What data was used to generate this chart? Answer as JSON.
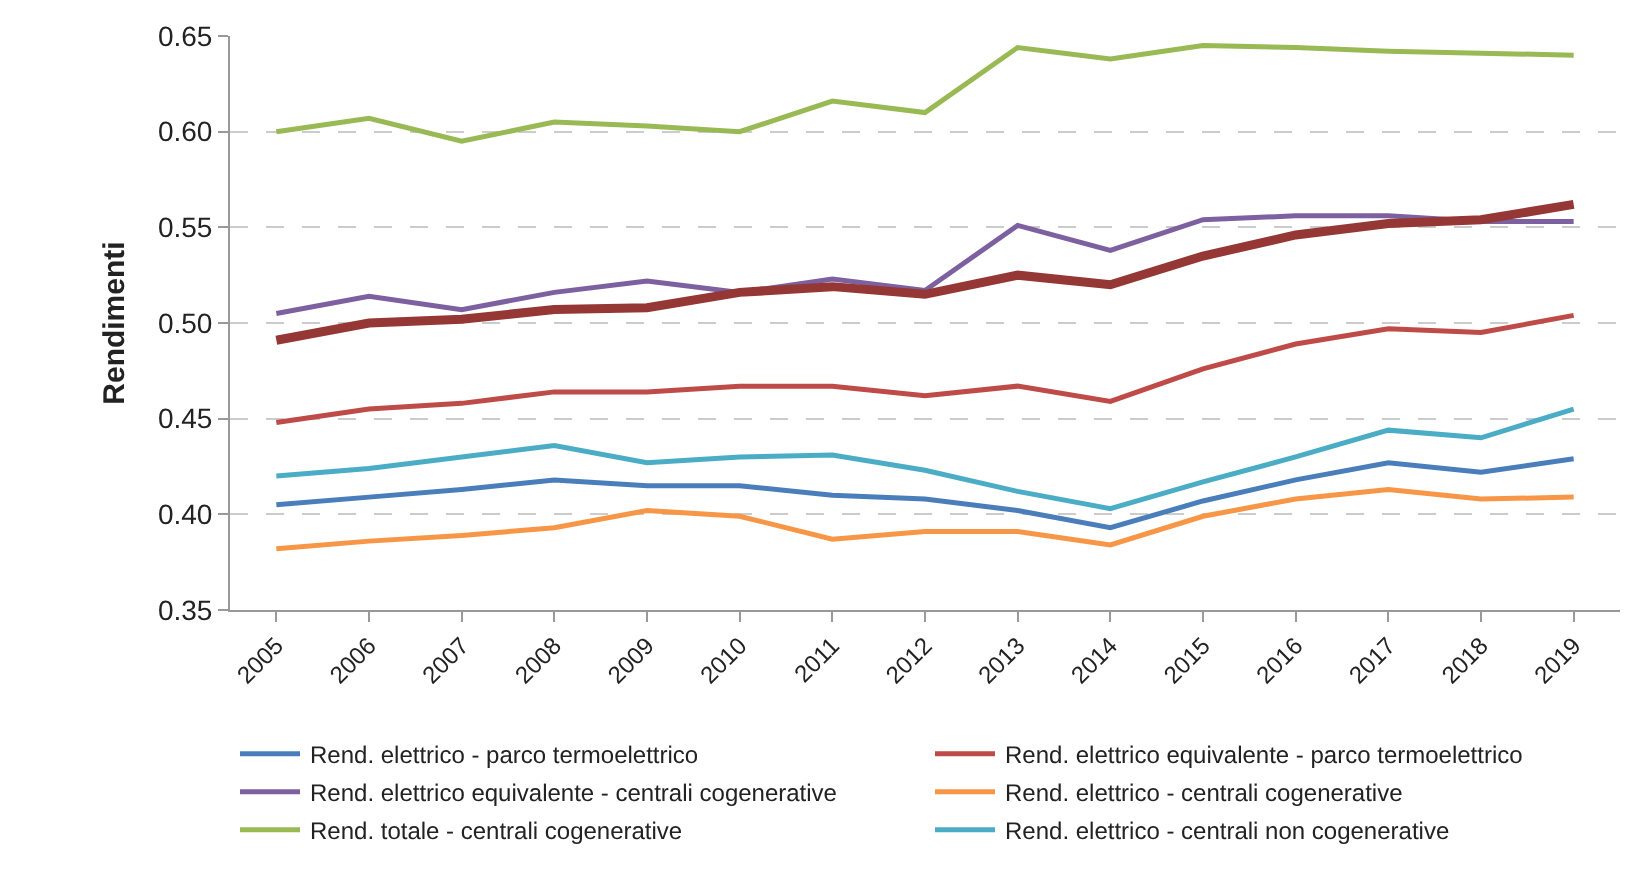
{
  "chart_data": {
    "type": "line",
    "ylabel": "Rendimenti",
    "categories": [
      "2005",
      "2006",
      "2007",
      "2008",
      "2009",
      "2010",
      "2011",
      "2012",
      "2013",
      "2014",
      "2015",
      "2016",
      "2017",
      "2018",
      "2019"
    ],
    "ylim": [
      0.35,
      0.65
    ],
    "yticks": [
      {
        "value": 0.35,
        "label": "0.35"
      },
      {
        "value": 0.4,
        "label": "0.40"
      },
      {
        "value": 0.45,
        "label": "0.45"
      },
      {
        "value": 0.5,
        "label": "0.50"
      },
      {
        "value": 0.55,
        "label": "0.55"
      },
      {
        "value": 0.6,
        "label": "0.60"
      },
      {
        "value": 0.65,
        "label": "0.65"
      }
    ],
    "grid": "y",
    "legend": "bottom",
    "line_style": "solid",
    "marker": "none",
    "series": [
      {
        "name": "Rend. elettrico - parco termoelettrico",
        "color": "#4a7ebb",
        "values": [
          0.405,
          0.409,
          0.413,
          0.418,
          0.415,
          0.415,
          0.41,
          0.408,
          0.402,
          0.393,
          0.407,
          0.418,
          0.427,
          0.422,
          0.429
        ]
      },
      {
        "name": "Rend. elettrico equivalente - parco termoelettrico",
        "color": "#be4b48",
        "values": [
          0.448,
          0.455,
          0.458,
          0.464,
          0.464,
          0.467,
          0.467,
          0.462,
          0.467,
          0.459,
          0.476,
          0.489,
          0.497,
          0.495,
          0.504
        ]
      },
      {
        "name": "Rend. elettrico equivalente - centrali cogenerative",
        "color": "#7d60a0",
        "values": [
          0.505,
          0.514,
          0.507,
          0.516,
          0.522,
          0.516,
          0.523,
          0.517,
          0.551,
          0.538,
          0.554,
          0.556,
          0.556,
          0.553,
          0.553
        ]
      },
      {
        "name": "Rend. elettrico - centrali cogenerative",
        "color": "#f79646",
        "values": [
          0.382,
          0.386,
          0.389,
          0.393,
          0.402,
          0.399,
          0.387,
          0.391,
          0.391,
          0.384,
          0.399,
          0.408,
          0.413,
          0.408,
          0.409
        ]
      },
      {
        "name": "Rend. totale - centrali cogenerative",
        "color": "#98b954",
        "values": [
          0.6,
          0.607,
          0.595,
          0.605,
          0.603,
          0.6,
          0.616,
          0.61,
          0.644,
          0.638,
          0.645,
          0.644,
          0.642,
          0.641,
          0.64
        ]
      },
      {
        "name": "Rend. elettrico - centrali non cogenerative",
        "color": "#4bacc6",
        "values": [
          0.42,
          0.424,
          0.43,
          0.436,
          0.427,
          0.43,
          0.431,
          0.423,
          0.412,
          0.403,
          0.417,
          0.43,
          0.444,
          0.44,
          0.455
        ]
      },
      {
        "color": "#953735",
        "values": [
          0.491,
          0.5,
          0.502,
          0.507,
          0.508,
          0.516,
          0.519,
          0.515,
          0.525,
          0.52,
          0.535,
          0.546,
          0.552,
          0.554,
          0.562
        ]
      }
    ]
  }
}
